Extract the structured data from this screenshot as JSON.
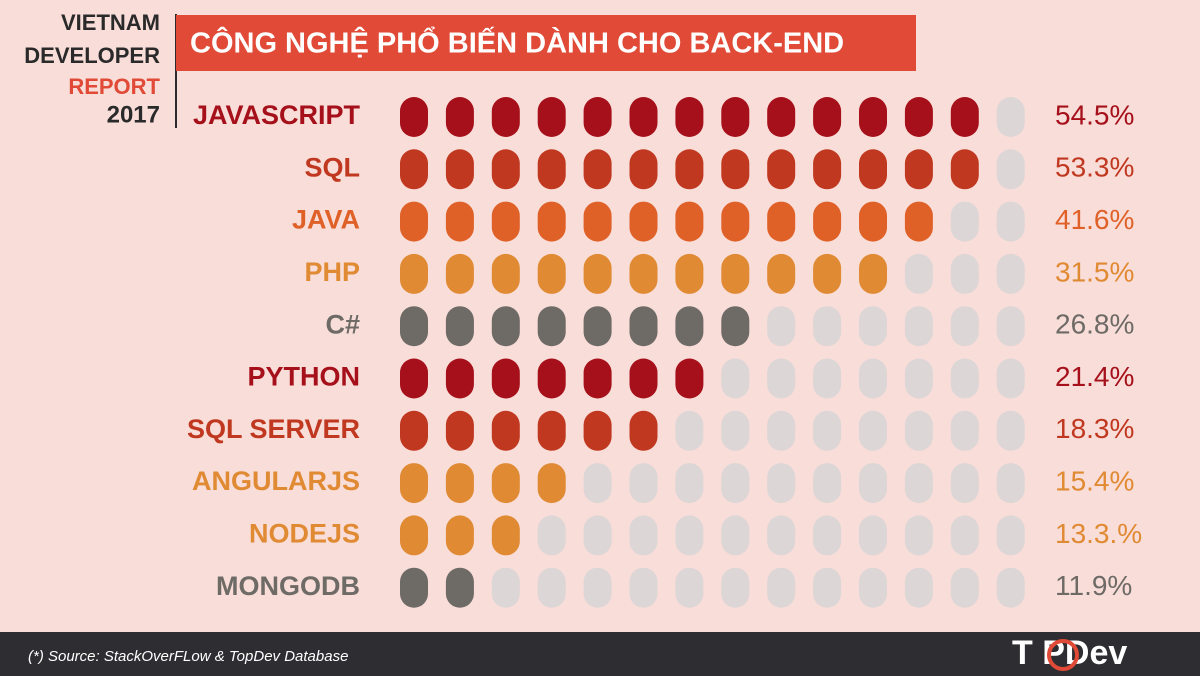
{
  "header": {
    "line1": "VIETNAM",
    "line2": "DEVELOPER",
    "line3": "REPORT",
    "line4": "2017"
  },
  "chart_data": {
    "type": "pictogram",
    "title": "CÔNG NGHỆ PHỔ BIẾN DÀNH CHO BACK-END",
    "categories": [
      "JAVASCRIPT",
      "SQL",
      "JAVA",
      "PHP",
      "C#",
      "PYTHON",
      "SQL SERVER",
      "ANGULARJS",
      "NODEJS",
      "MONGODB"
    ],
    "values": [
      54.5,
      53.3,
      41.6,
      31.5,
      26.8,
      21.4,
      18.3,
      15.4,
      13.3,
      11.9
    ],
    "value_labels": [
      "54.5%",
      "53.3%",
      "41.6%",
      "31.5%",
      "26.8%",
      "21.4%",
      "18.3%",
      "15.4%",
      "13.3.%",
      "11.9%"
    ],
    "filled": [
      13,
      13,
      12,
      11,
      8,
      7,
      6,
      4,
      3,
      2
    ],
    "total": 14,
    "colors": [
      "#a5101a",
      "#c0381f",
      "#df6128",
      "#e08a33",
      "#6e6a66",
      "#a5101a",
      "#c0381f",
      "#e08a33",
      "#e08a33",
      "#6e6a66"
    ],
    "empty_color": "#dcd6d6"
  },
  "footer": {
    "source": "(*) Source: StackOverFLow & TopDev Database",
    "logo": "T PDev"
  }
}
